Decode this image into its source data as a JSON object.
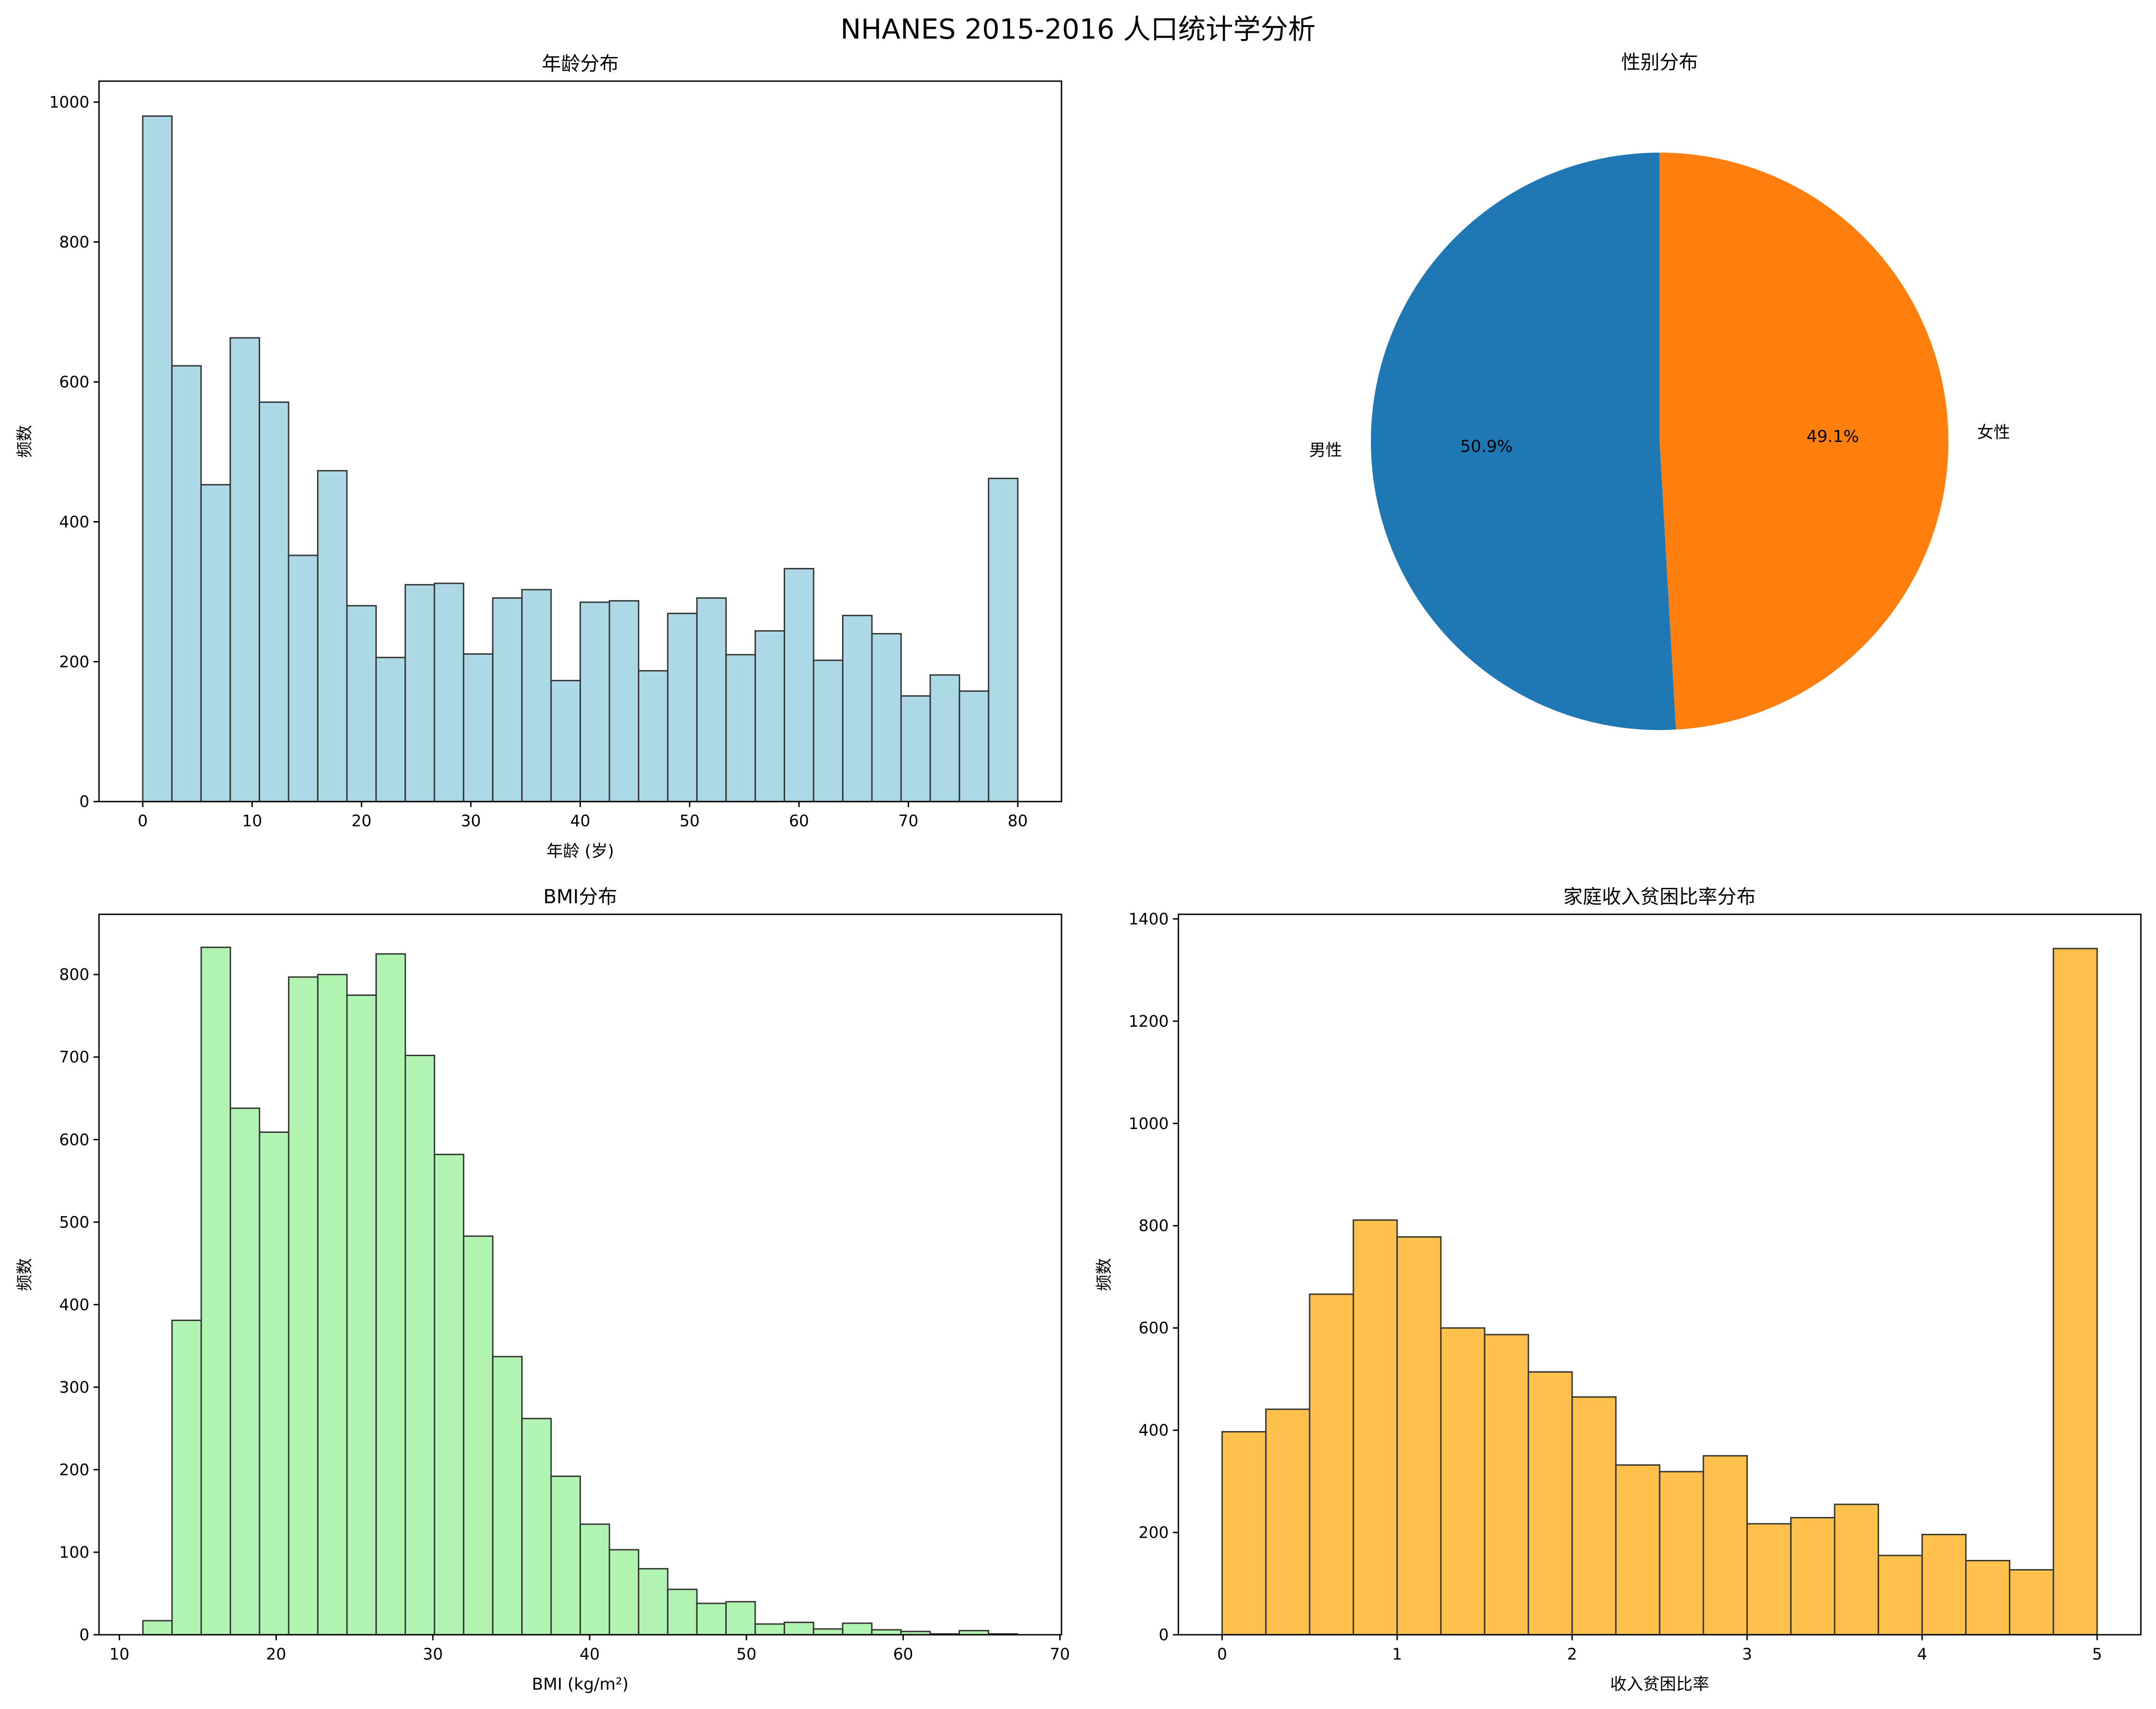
{
  "figure_title": "NHANES 2015-2016 人口统计学分析",
  "chart_data": [
    {
      "type": "bar",
      "subtype": "histogram",
      "title": "年龄分布",
      "xlabel": "年龄 (岁)",
      "ylabel": "频数",
      "bin_start": 0,
      "bin_end": 80,
      "values": [
        980,
        623,
        453,
        663,
        571,
        352,
        473,
        280,
        206,
        310,
        312,
        211,
        291,
        303,
        173,
        285,
        287,
        187,
        269,
        291,
        210,
        244,
        333,
        202,
        266,
        240,
        151,
        181,
        158,
        462
      ],
      "xlim": [
        -4,
        84
      ],
      "ylim": [
        0,
        1030
      ],
      "xticks": [
        0,
        10,
        20,
        30,
        40,
        50,
        60,
        70,
        80
      ],
      "yticks": [
        0,
        200,
        400,
        600,
        800,
        1000
      ],
      "color": "#add8e6",
      "edgecolor": "#333333",
      "grid": false
    },
    {
      "type": "pie",
      "title": "性别分布",
      "labels": [
        "男性",
        "女性"
      ],
      "values": [
        50.9,
        49.1
      ],
      "autopct": [
        "50.9%",
        "49.1%"
      ],
      "colors": [
        "#1f77b4",
        "#ff7f0e"
      ],
      "start_angle": 90
    },
    {
      "type": "bar",
      "subtype": "histogram",
      "title": "BMI分布",
      "xlabel": "BMI (kg/m²)",
      "ylabel": "频数",
      "bin_start": 11.5,
      "bin_end": 67.3,
      "values": [
        17,
        381,
        833,
        638,
        609,
        797,
        800,
        775,
        825,
        702,
        582,
        483,
        337,
        262,
        192,
        134,
        103,
        80,
        55,
        38,
        40,
        13,
        15,
        7,
        14,
        6,
        4,
        1,
        5,
        1
      ],
      "xlim": [
        8.7,
        70.1
      ],
      "ylim": [
        0,
        873
      ],
      "xticks": [
        10,
        20,
        30,
        40,
        50,
        60,
        70
      ],
      "yticks": [
        0,
        100,
        200,
        300,
        400,
        500,
        600,
        700,
        800
      ],
      "color": "#90ee90",
      "edgecolor": "#333333",
      "grid": false
    },
    {
      "type": "bar",
      "subtype": "histogram",
      "title": "家庭收入贫困比率分布",
      "xlabel": "收入贫困比率",
      "ylabel": "频数",
      "bin_start": 0,
      "bin_end": 5,
      "values": [
        397,
        441,
        666,
        811,
        778,
        600,
        587,
        514,
        465,
        332,
        319,
        350,
        217,
        229,
        255,
        155,
        196,
        145,
        127,
        1342
      ],
      "xlim": [
        -0.25,
        5.25
      ],
      "ylim": [
        0,
        1409
      ],
      "xticks": [
        0,
        1,
        2,
        3,
        4,
        5
      ],
      "yticks": [
        0,
        200,
        400,
        600,
        800,
        1000,
        1200,
        1400
      ],
      "color": "#ffa500",
      "edgecolor": "#333333",
      "grid": false
    }
  ]
}
